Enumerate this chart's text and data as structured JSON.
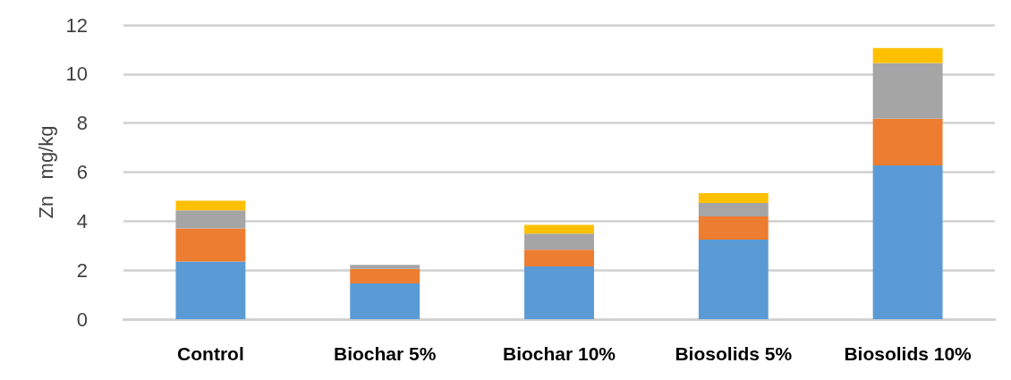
{
  "chart_data": {
    "type": "bar",
    "ylabel": "Zn   mg/kg",
    "categories": [
      "Control",
      "Biochar 5%",
      "Biochar 10%",
      "Biosolids 5%",
      "Biosolids 10%"
    ],
    "stacked": true,
    "series": [
      {
        "color": "#5b9bd5",
        "values": [
          2.35,
          1.46,
          2.15,
          3.25,
          6.27
        ]
      },
      {
        "color": "#ed7d31",
        "values": [
          1.35,
          0.59,
          0.69,
          0.94,
          1.91
        ]
      },
      {
        "color": "#a5a5a5",
        "values": [
          0.74,
          0.17,
          0.65,
          0.55,
          2.27
        ]
      },
      {
        "color": "#ffc000",
        "values": [
          0.39,
          0,
          0.36,
          0.4,
          0.61
        ]
      }
    ],
    "ylim": [
      0,
      12
    ],
    "yticks": [
      0,
      2,
      4,
      6,
      8,
      10,
      12
    ],
    "grid": "y"
  }
}
